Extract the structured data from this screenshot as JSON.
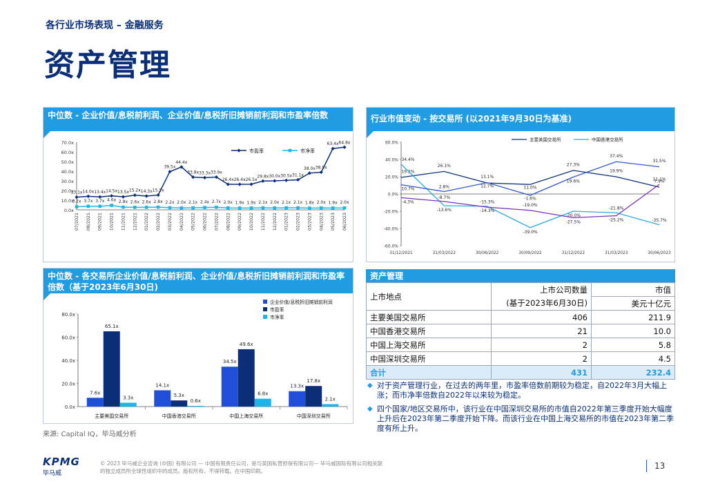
{
  "header": {
    "section_label": "各行业市场表现 – 金融服务",
    "title": "资产管理"
  },
  "panels": {
    "p1_title": "中位数 - 企业价值/息税前利润、企业价值/息税折旧摊销前利润和市盈率倍数",
    "p2_title": "行业市值变动 - 按交易所 (以2021年9月30日为基准)",
    "p3_title": "中位数 - 各交易所企业价值/息税前利润、企业价值/息税折旧摊销前利润和市盈率倍数（基于2023年6月30日)",
    "table_title": "资产管理"
  },
  "table": {
    "col1_header": "上市地点",
    "col2_header_line1": "上市公司数量",
    "col2_header_line2": "(基于2023年6月30日)",
    "col3_header_line1": "市值",
    "col3_header_line2": "美元十亿元",
    "rows": [
      {
        "name": "主要美国交易所",
        "count": "406",
        "value": "211.9"
      },
      {
        "name": "中国香港交易所",
        "count": "21",
        "value": "10.0"
      },
      {
        "name": "中国上海交易所",
        "count": "2",
        "value": "5.8"
      },
      {
        "name": "中国深圳交易所",
        "count": "2",
        "value": "4.5"
      }
    ],
    "total": {
      "name": "合计",
      "count": "431",
      "value": "232.4"
    }
  },
  "bullets": [
    "对于资产管理行业，在过去的两年里，市盈率倍数前期较为稳定，自2022年3月大幅上涨；而市净率倍数自2022年以来较为稳定。",
    "四个国家/地区交易所中，该行业在中国深圳交易所的市值自2022年第三季度开始大幅度上升后在2023年第二季度开始下降。而该行业在中国上海交易所的市值在2023年第二季度有所上升。"
  ],
  "source": "来源: Capital IQ，毕马威分析",
  "footer": {
    "line1": "© 2023 毕马威企业咨询 (中国) 有限公司 — 中国有限责任公司，是与英国私营担保有限公司— 毕马威国际有限公司相关联",
    "line2": "的独立成员所全球性组织中的成员。版权所有，不得转载。在中国印刷。",
    "logo_text": "KPMG",
    "logo_cn": "毕马威",
    "page_number": "13"
  },
  "colors": {
    "navy": "#0a2f78",
    "blue": "#1f4fd8",
    "cyan": "#1fb4e8",
    "purple": "#7b2fbf",
    "light": "#2aa8e0"
  },
  "chart_data": [
    {
      "type": "line",
      "x": [
        "07/2021",
        "08/2021",
        "09/2021",
        "10/2021",
        "11/2021",
        "12/2021",
        "01/2022",
        "02/2022",
        "03/2022",
        "04/2022",
        "05/2022",
        "06/2022",
        "07/2022",
        "08/2022",
        "09/2022",
        "10/2022",
        "11/2022",
        "12/2022",
        "01/2023",
        "02/2023",
        "03/2023",
        "04/2023",
        "05/2023",
        "06/2023"
      ],
      "series": [
        {
          "name": "市盈率",
          "values": [
            13.1,
            14.0,
            13.4,
            14.5,
            13.5,
            15.2,
            14.3,
            15.3,
            39.5,
            44.4,
            33.8,
            33.3,
            33.9,
            26.4,
            26.4,
            26.5,
            29.8,
            30.0,
            30.5,
            31.1,
            38.0,
            38.9,
            63.4,
            64.8
          ],
          "labels": [
            "13.1x",
            "14.0x",
            "13.4x",
            "14.5x",
            "13.5x",
            "15.2x",
            "14.3x",
            "15.3x",
            "39.5x",
            "44.4x",
            "33.8x",
            "33.3x",
            "33.9x",
            "26.4x",
            "26.4x",
            "26.5x",
            "29.8x",
            "30.0x",
            "30.5x",
            "31.1x",
            "38.0x",
            "38.9x",
            "63.4x",
            "64.8x"
          ]
        },
        {
          "name": "市净率",
          "values": [
            3.2,
            3.7,
            3.7,
            4.6,
            2.8,
            2.6,
            2.6,
            2.8,
            2.2,
            2.0,
            2.1,
            2.4,
            2.7,
            2.0,
            1.9,
            1.9,
            2.1,
            2.0,
            2.1,
            2.1,
            1.8,
            2.0,
            1.9,
            2.0
          ],
          "labels": [
            "3.2x",
            "3.7x",
            "3.7x",
            "4.6x",
            "2.8x",
            "2.6x",
            "2.6x",
            "2.8x",
            "2.2x",
            "2.0x",
            "2.1x",
            "2.4x",
            "2.7x",
            "2.0x",
            "1.9x",
            "1.9x",
            "2.1x",
            "2.0x",
            "2.1x",
            "2.1x",
            "1.8x",
            "2.0x",
            "1.9x",
            "2.0x"
          ]
        }
      ],
      "yticks": [
        "0.0x",
        "10.0x",
        "20.0x",
        "30.0x",
        "40.0x",
        "50.0x",
        "60.0x",
        "70.0x"
      ],
      "ylim": [
        0,
        70
      ]
    },
    {
      "type": "line",
      "x": [
        "31/12/2021",
        "31/03/2022",
        "30/06/2022",
        "30/09/2022",
        "31/12/2022",
        "31/03/2023",
        "30/06/2023"
      ],
      "series": [
        {
          "name": "主要美国交易所",
          "values": [
            19.2,
            26.1,
            12.7,
            11.0,
            27.3,
            19.9,
            7.9
          ],
          "labels": [
            "19.2%",
            "26.1%",
            "12.7%",
            "11.0%",
            "27.3%",
            "19.9%",
            "7.9%"
          ]
        },
        {
          "name": "中国香港交易所",
          "values": [
            34.4,
            -13.6,
            -14.3,
            -39.0,
            -20.0,
            -21.8,
            -35.7
          ],
          "labels": [
            "34.4%",
            "-13.6%",
            "-14.3%",
            "-39.0%",
            "-20.0%",
            "-21.8%",
            "-35.7%"
          ]
        },
        {
          "name": "中国上海交易所",
          "values": [
            10.7,
            2.8,
            13.1,
            -1.6,
            19.6,
            37.4,
            31.5
          ],
          "labels": [
            "10.7%",
            "2.8%",
            "13.1%",
            "-1.6%",
            "19.6%",
            "37.4%",
            "31.5%"
          ]
        },
        {
          "name": "中国深圳交易所",
          "values": [
            -4.3,
            -8.7,
            -15.3,
            -19.0,
            -27.5,
            -25.2,
            11.1
          ],
          "labels": [
            "-4.3%",
            "-8.7%",
            "-15.3%",
            "-19.0%",
            "-27.5%",
            "-25.2%",
            "11.1%"
          ]
        }
      ],
      "yticks": [
        "-60.0%",
        "-40.0%",
        "-20.0%",
        "0.0%",
        "20.0%",
        "40.0%",
        "60.0%"
      ],
      "ylim": [
        -60,
        60
      ]
    },
    {
      "type": "bar",
      "categories": [
        "主要美国交易所",
        "中国香港交易所",
        "中国上海交易所",
        "中国深圳交易所"
      ],
      "series": [
        {
          "name": "企业价值/息税折旧摊销前利润",
          "values": [
            7.6,
            14.1,
            34.5,
            13.3
          ],
          "labels": [
            "7.6x",
            "14.1x",
            "34.5x",
            "13.3x"
          ]
        },
        {
          "name": "市盈率",
          "values": [
            65.1,
            5.3,
            49.6,
            17.8
          ],
          "labels": [
            "65.1x",
            "5.3x",
            "49.6x",
            "17.8x"
          ]
        },
        {
          "name": "市净率",
          "values": [
            3.3,
            0.6,
            6.8,
            2.1
          ],
          "labels": [
            "3.3x",
            "0.6x",
            "6.8x",
            "2.1x"
          ]
        }
      ],
      "yticks": [
        "0.0x",
        "20.0x",
        "40.0x",
        "60.0x",
        "80.0x"
      ],
      "ylim": [
        0,
        80
      ]
    }
  ]
}
